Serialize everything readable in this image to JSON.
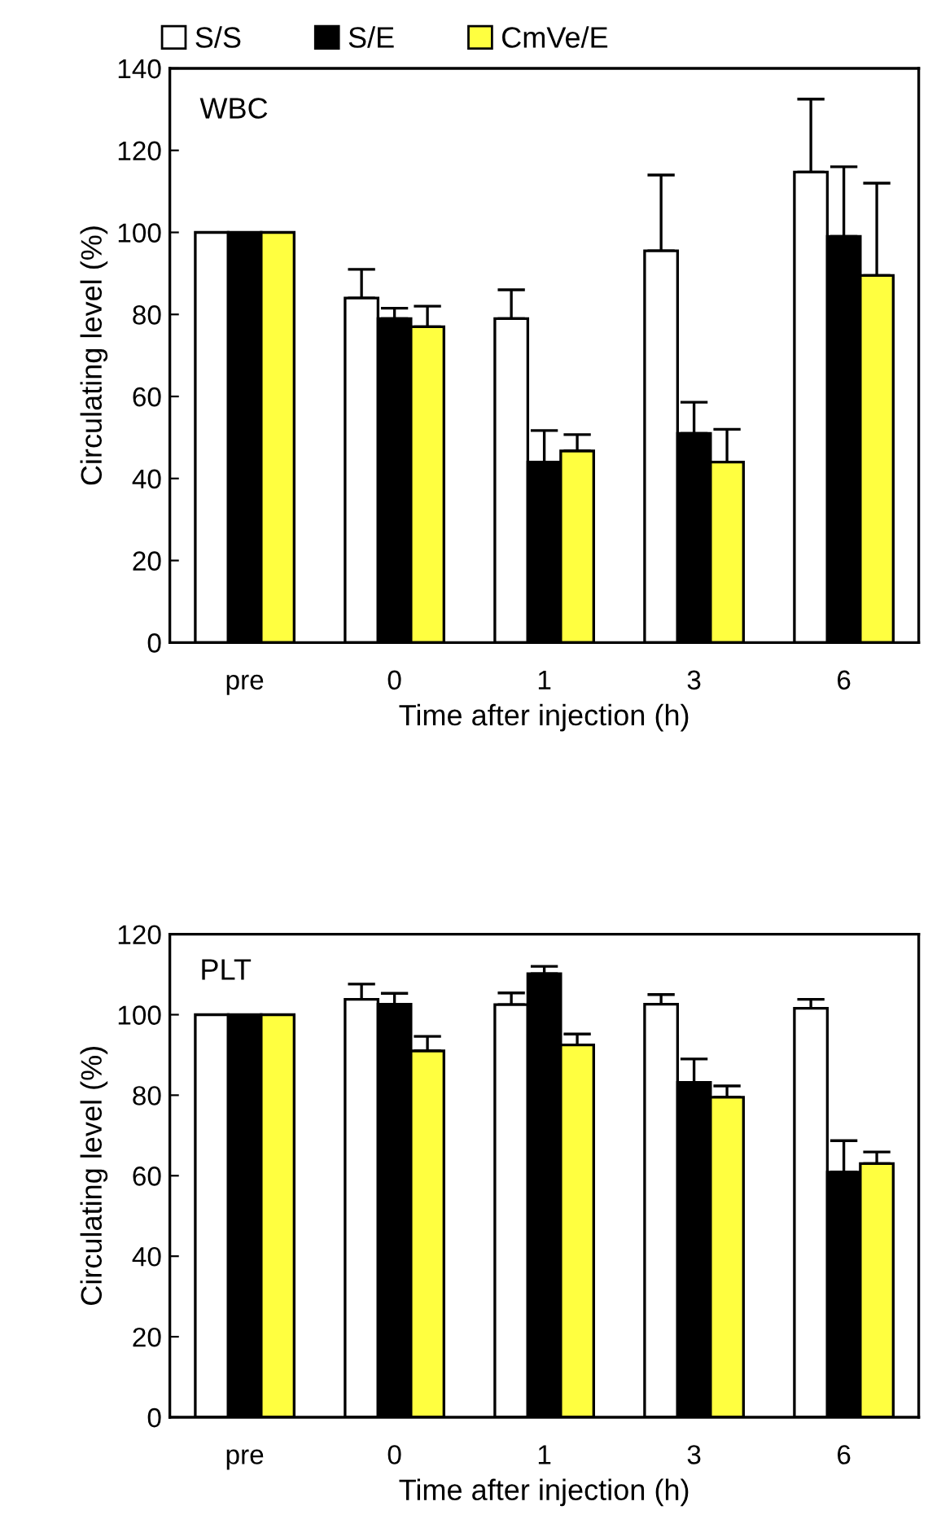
{
  "chart_data": [
    {
      "type": "bar",
      "title": "WBC",
      "xlabel": "Time after injection (h)",
      "ylabel": "Circulating level (%)",
      "categories": [
        "pre",
        "0",
        "1",
        "3",
        "6"
      ],
      "ylim": [
        0,
        140
      ],
      "yticks": [
        0,
        20,
        40,
        60,
        80,
        100,
        120,
        140
      ],
      "legend": "top left",
      "grid": false,
      "series": [
        {
          "name": "S/S",
          "color": "#ffffff",
          "values": [
            100,
            84,
            79,
            95.5,
            114.7
          ],
          "errors": [
            null,
            [
              84,
              91
            ],
            [
              79,
              86
            ],
            [
              95.5,
              114
            ],
            [
              114.7,
              132.5
            ]
          ]
        },
        {
          "name": "S/E",
          "color": "#000000",
          "values": [
            100,
            79,
            44,
            51,
            99
          ],
          "errors": [
            null,
            [
              79,
              81.5
            ],
            [
              44,
              51.7
            ],
            [
              51,
              58.6
            ],
            [
              99,
              116
            ]
          ]
        },
        {
          "name": "CmVe/E",
          "color": "#ffff40",
          "values": [
            100,
            77,
            46.7,
            44,
            89.5
          ],
          "errors": [
            null,
            [
              77,
              82
            ],
            [
              46.7,
              50.7
            ],
            [
              44,
              52
            ],
            [
              89.5,
              112
            ]
          ]
        }
      ]
    },
    {
      "type": "bar",
      "title": "PLT",
      "xlabel": "Time after injection (h)",
      "ylabel": "Circulating level (%)",
      "categories": [
        "pre",
        "0",
        "1",
        "3",
        "6"
      ],
      "ylim": [
        0,
        120
      ],
      "yticks": [
        0,
        20,
        40,
        60,
        80,
        100,
        120
      ],
      "legend": false,
      "grid": false,
      "series": [
        {
          "color": "#ffffff",
          "values": [
            100,
            103.8,
            102.5,
            102.6,
            101.6
          ],
          "errors": [
            null,
            [
              103.8,
              107.6
            ],
            [
              102.5,
              105.4
            ],
            [
              102.6,
              105
            ],
            [
              101.6,
              103.8
            ]
          ]
        },
        {
          "color": "#000000",
          "values": [
            100,
            102.6,
            110.2,
            83.2,
            60.9
          ],
          "errors": [
            null,
            [
              102.6,
              105.3
            ],
            [
              110.2,
              112
            ],
            [
              83.2,
              89
            ],
            [
              60.9,
              68.7
            ]
          ]
        },
        {
          "color": "#ffff40",
          "values": [
            100,
            91,
            92.5,
            79.5,
            63
          ],
          "errors": [
            null,
            [
              91,
              94.6
            ],
            [
              92.5,
              95.2
            ],
            [
              79.5,
              82.3
            ],
            [
              63,
              65.9
            ]
          ]
        }
      ]
    }
  ]
}
